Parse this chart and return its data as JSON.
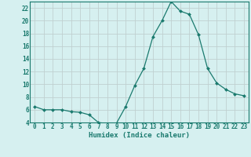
{
  "x": [
    0,
    1,
    2,
    3,
    4,
    5,
    6,
    7,
    8,
    9,
    10,
    11,
    12,
    13,
    14,
    15,
    16,
    17,
    18,
    19,
    20,
    21,
    22,
    23
  ],
  "y": [
    6.5,
    6.0,
    6.0,
    6.0,
    5.7,
    5.6,
    5.2,
    4.0,
    3.8,
    3.9,
    6.5,
    9.8,
    12.5,
    17.5,
    20.0,
    23.0,
    21.5,
    21.0,
    17.8,
    12.5,
    10.2,
    9.2,
    8.5,
    8.2
  ],
  "xlabel": "Humidex (Indice chaleur)",
  "ylim": [
    4,
    23
  ],
  "xlim": [
    -0.5,
    23.5
  ],
  "yticks": [
    4,
    6,
    8,
    10,
    12,
    14,
    16,
    18,
    20,
    22
  ],
  "xticks": [
    0,
    1,
    2,
    3,
    4,
    5,
    6,
    7,
    8,
    9,
    10,
    11,
    12,
    13,
    14,
    15,
    16,
    17,
    18,
    19,
    20,
    21,
    22,
    23
  ],
  "line_color": "#1a7a6e",
  "marker_color": "#1a7a6e",
  "bg_color": "#d6f0f0",
  "grid_color_major": "#c0d0d0",
  "grid_color_minor": "#dce8e8",
  "axis_color": "#1a7a6e",
  "tick_fontsize": 5.5,
  "label_fontsize": 6.5
}
